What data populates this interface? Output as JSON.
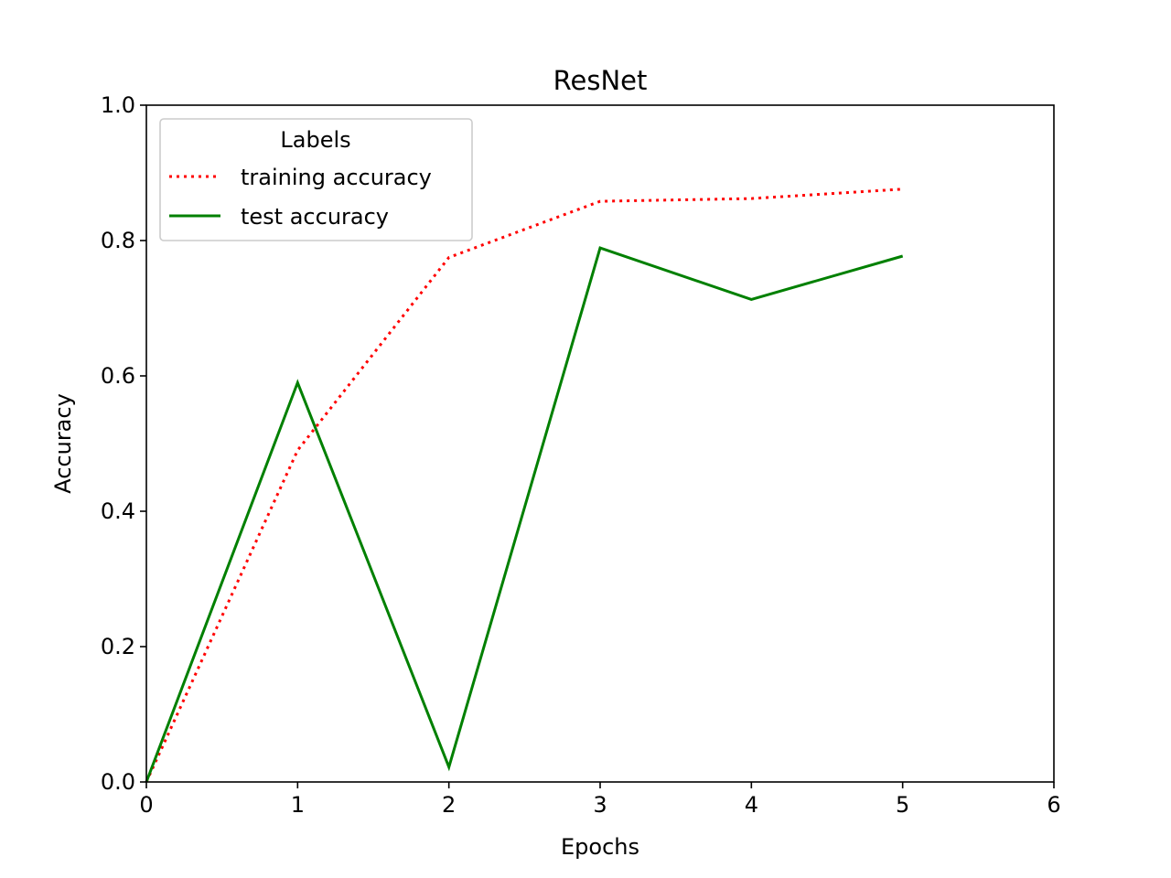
{
  "chart_data": {
    "type": "line",
    "title": "ResNet",
    "xlabel": "Epochs",
    "ylabel": "Accuracy",
    "xlim": [
      0,
      6
    ],
    "ylim": [
      0.0,
      1.0
    ],
    "x_ticks": [
      "0",
      "1",
      "2",
      "3",
      "4",
      "5",
      "6"
    ],
    "y_ticks": [
      "0.0",
      "0.2",
      "0.4",
      "0.6",
      "0.8",
      "1.0"
    ],
    "grid": false,
    "legend": {
      "title": "Labels",
      "placement": "upper-left"
    },
    "x": [
      0,
      1,
      2,
      3,
      4,
      5
    ],
    "series": [
      {
        "name": "training accuracy",
        "values": [
          0.0,
          0.49,
          0.775,
          0.858,
          0.862,
          0.876
        ],
        "color": "#ff0000",
        "style": "dotted"
      },
      {
        "name": "test accuracy",
        "values": [
          0.0,
          0.59,
          0.022,
          0.789,
          0.713,
          0.777
        ],
        "color": "#008000",
        "style": "solid"
      }
    ]
  }
}
